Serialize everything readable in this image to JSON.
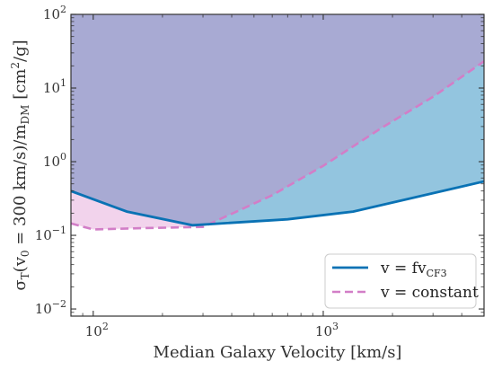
{
  "chart_data": {
    "type": "area",
    "xscale": "log",
    "yscale": "log",
    "xlim": [
      80,
      5000
    ],
    "ylim": [
      0.008,
      100
    ],
    "xlabel": "Median Galaxy Velocity [km/s]",
    "ylabel": "σ_T(v_0 = 300 km/s)/m_DM [cm²/g]",
    "xticks": [
      {
        "value": 100,
        "base": "10",
        "exp": "2"
      },
      {
        "value": 1000,
        "base": "10",
        "exp": "3"
      }
    ],
    "yticks": [
      {
        "value": 0.01,
        "base": "10",
        "exp": "−2"
      },
      {
        "value": 0.1,
        "base": "10",
        "exp": "−1"
      },
      {
        "value": 1,
        "base": "10",
        "exp": "0"
      },
      {
        "value": 10,
        "base": "10",
        "exp": "1"
      },
      {
        "value": 100,
        "base": "10",
        "exp": "2"
      }
    ],
    "grid": false,
    "legend_position": "bottom-right",
    "series": [
      {
        "name": "v = f v_CF3",
        "legend_main": "v = fv",
        "legend_sub": "CF3",
        "style": "solid",
        "color": "#0a72b4",
        "fill": "#93c5df",
        "x": [
          80,
          140,
          270,
          700,
          1350,
          5000
        ],
        "y": [
          0.4,
          0.21,
          0.137,
          0.165,
          0.21,
          0.54
        ]
      },
      {
        "name": "v = constant",
        "legend_main": "v = constant",
        "style": "dashed",
        "color": "#d27ec7",
        "fill": "#f2d3ec",
        "x": [
          80,
          100,
          130,
          180,
          300,
          600,
          1000,
          1800,
          3000,
          5000
        ],
        "y": [
          0.145,
          0.12,
          0.123,
          0.126,
          0.13,
          0.35,
          0.88,
          2.9,
          7.6,
          23
        ]
      }
    ],
    "overlap_fill": "#a8aad3",
    "colors": {
      "solid": "#0a72b4",
      "dashed": "#d27ec7",
      "solid_fill": "#93c5df",
      "dashed_fill": "#f2d3ec",
      "overlap": "#a8aad3"
    }
  }
}
